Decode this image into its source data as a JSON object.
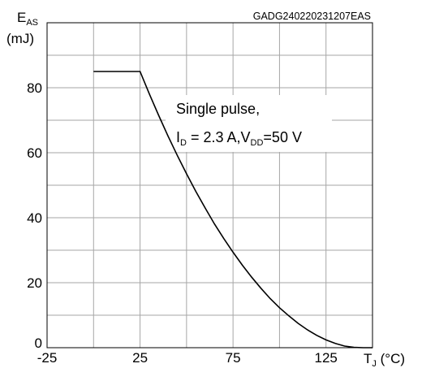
{
  "chart_data": {
    "type": "line",
    "title": "",
    "code": "GADG240220231207EAS",
    "ylabel": {
      "main": "E",
      "sub": "AS",
      "unit": "(mJ)"
    },
    "xlabel": {
      "main": "T",
      "sub": "J",
      "unit": " (°C)"
    },
    "xlim": [
      -25,
      150
    ],
    "ylim": [
      0,
      100
    ],
    "x_ticks": [
      -25,
      0,
      25,
      50,
      75,
      100,
      125,
      150
    ],
    "x_tick_labels": [
      "-25",
      "",
      "25",
      "",
      "75",
      "",
      "125",
      ""
    ],
    "y_ticks": [
      0,
      10,
      20,
      30,
      40,
      50,
      60,
      70,
      80,
      90,
      100
    ],
    "y_tick_labels": [
      "0",
      "",
      "20",
      "",
      "40",
      "",
      "60",
      "",
      "80",
      "",
      ""
    ],
    "grid": true,
    "annotation": {
      "line1": "Single pulse,",
      "line2_a": "I",
      "line2_a_sub": "D",
      "line2_b": " = 2.3 A,V",
      "line2_b_sub": "DD",
      "line2_c": "=50 V"
    },
    "series": [
      {
        "x": [
          0,
          25,
          30,
          35,
          40,
          45,
          50,
          55,
          60,
          65,
          70,
          75,
          80,
          85,
          90,
          95,
          100,
          105,
          110,
          115,
          120,
          125,
          130,
          135,
          140,
          145,
          150
        ],
        "y": [
          85,
          85,
          78.1,
          71.5,
          65.2,
          59.2,
          53.5,
          48.1,
          43.0,
          38.1,
          33.6,
          29.4,
          25.4,
          21.7,
          18.3,
          15.1,
          12.3,
          9.8,
          7.5,
          5.5,
          3.8,
          2.4,
          1.3,
          0.5,
          0.1,
          0,
          0
        ]
      }
    ]
  }
}
